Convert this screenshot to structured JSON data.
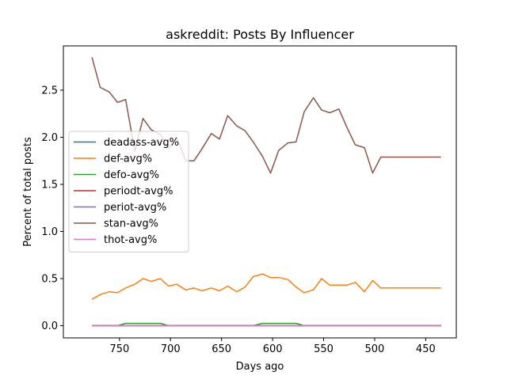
{
  "chart_data": {
    "type": "line",
    "title": "askreddit: Posts By Influencer",
    "xlabel": "Days ago",
    "ylabel": "Percent of total posts",
    "x_inverted": true,
    "xlim": [
      805,
      420
    ],
    "ylim": [
      -0.13,
      2.97
    ],
    "x_ticks": [
      750,
      700,
      650,
      600,
      550,
      500,
      450
    ],
    "y_ticks": [
      0.0,
      0.5,
      1.0,
      1.5,
      2.0,
      2.5
    ],
    "y_tick_labels": [
      "0.0",
      "0.5",
      "1.0",
      "1.5",
      "2.0",
      "2.5"
    ],
    "grid": false,
    "legend_position": "center-left",
    "x": [
      777,
      769,
      760,
      752,
      744,
      735,
      727,
      719,
      710,
      702,
      694,
      685,
      677,
      669,
      660,
      652,
      644,
      635,
      627,
      619,
      610,
      602,
      594,
      585,
      577,
      569,
      560,
      552,
      544,
      535,
      527,
      519,
      510,
      502,
      494,
      485,
      477,
      469,
      460,
      452,
      444,
      435
    ],
    "series": [
      {
        "name": "deadass-avg%",
        "color": "#1f77b4",
        "values": [
          0,
          0,
          0,
          0,
          0,
          0,
          0,
          0,
          0,
          0,
          0,
          0,
          0,
          0,
          0,
          0,
          0,
          0,
          0,
          0,
          0,
          0,
          0,
          0,
          0,
          0,
          0,
          0,
          0,
          0,
          0,
          0,
          0,
          0,
          0,
          0,
          0,
          0,
          0,
          0,
          0,
          0
        ]
      },
      {
        "name": "def-avg%",
        "color": "#ff7f0e",
        "values": [
          0.28,
          0.33,
          0.36,
          0.35,
          0.4,
          0.44,
          0.5,
          0.47,
          0.5,
          0.42,
          0.44,
          0.38,
          0.4,
          0.37,
          0.4,
          0.37,
          0.42,
          0.36,
          0.41,
          0.52,
          0.55,
          0.51,
          0.51,
          0.49,
          0.41,
          0.35,
          0.38,
          0.5,
          0.43,
          0.43,
          0.43,
          0.46,
          0.36,
          0.48,
          0.4,
          0.4,
          0.4,
          0.4,
          0.4,
          0.4,
          0.4,
          0.4
        ]
      },
      {
        "name": "defo-avg%",
        "color": "#2ca02c",
        "values": [
          0,
          0,
          0,
          0,
          0.025,
          0.025,
          0.025,
          0.025,
          0.025,
          0,
          0,
          0,
          0,
          0,
          0,
          0,
          0,
          0,
          0,
          0,
          0.025,
          0.025,
          0.025,
          0.025,
          0.025,
          0,
          0,
          0,
          0,
          0,
          0,
          0,
          0,
          0,
          0,
          0,
          0,
          0,
          0,
          0,
          0,
          0
        ]
      },
      {
        "name": "periodt-avg%",
        "color": "#d62728",
        "values": [
          0,
          0,
          0,
          0,
          0,
          0,
          0,
          0,
          0,
          0,
          0,
          0,
          0,
          0,
          0,
          0,
          0,
          0,
          0,
          0,
          0,
          0,
          0,
          0,
          0,
          0,
          0,
          0,
          0,
          0,
          0,
          0,
          0,
          0,
          0,
          0,
          0,
          0,
          0,
          0,
          0,
          0
        ]
      },
      {
        "name": "periot-avg%",
        "color": "#9467bd",
        "values": [
          0,
          0,
          0,
          0,
          0,
          0,
          0,
          0,
          0,
          0,
          0,
          0,
          0,
          0,
          0,
          0,
          0,
          0,
          0,
          0,
          0,
          0,
          0,
          0,
          0,
          0,
          0,
          0,
          0,
          0,
          0,
          0,
          0,
          0,
          0,
          0,
          0,
          0,
          0,
          0,
          0,
          0
        ]
      },
      {
        "name": "stan-avg%",
        "color": "#8c564b",
        "values": [
          2.85,
          2.53,
          2.48,
          2.37,
          2.4,
          1.85,
          2.2,
          2.08,
          2.03,
          1.88,
          2.0,
          1.75,
          1.75,
          1.88,
          2.04,
          1.98,
          2.23,
          2.12,
          2.07,
          1.95,
          1.8,
          1.62,
          1.86,
          1.94,
          1.95,
          2.27,
          2.42,
          2.29,
          2.26,
          2.3,
          2.1,
          1.92,
          1.89,
          1.62,
          1.79,
          1.79,
          1.79,
          1.79,
          1.79,
          1.79,
          1.79,
          1.79
        ]
      },
      {
        "name": "thot-avg%",
        "color": "#e377c2",
        "values": [
          0,
          0,
          0,
          0,
          0,
          0,
          0,
          0,
          0,
          0,
          0,
          0,
          0,
          0,
          0,
          0,
          0,
          0,
          0,
          0,
          0,
          0,
          0,
          0,
          0,
          0,
          0,
          0,
          0,
          0,
          0,
          0,
          0,
          0,
          0,
          0,
          0,
          0,
          0,
          0,
          0,
          0
        ]
      }
    ]
  }
}
